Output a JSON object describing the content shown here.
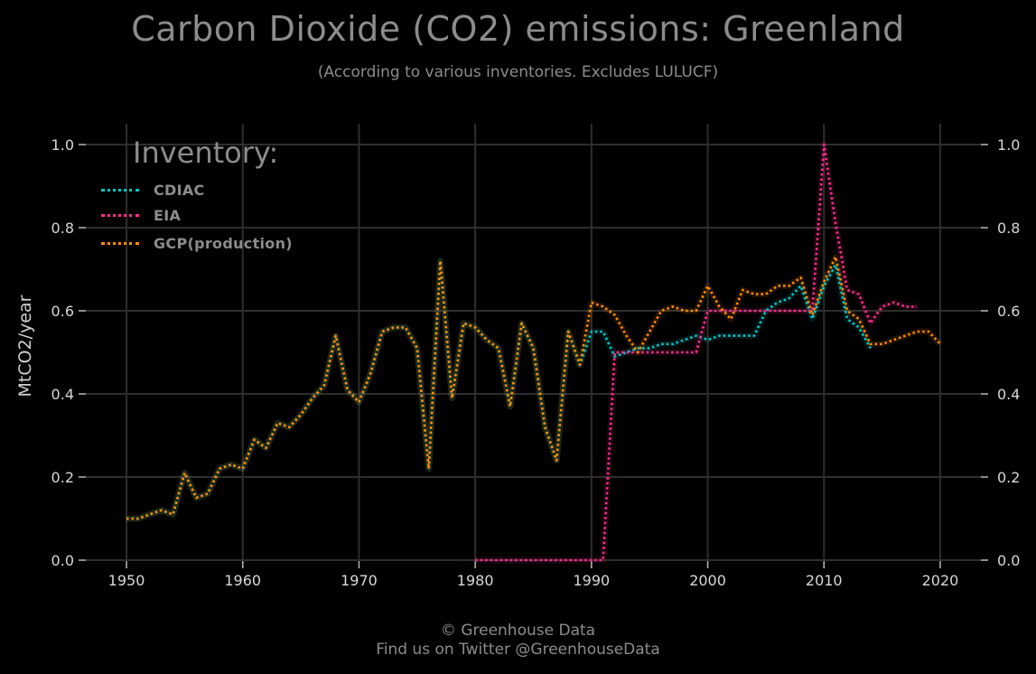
{
  "header": {
    "title": "Carbon Dioxide (CO2) emissions: Greenland",
    "subtitle": "(According to various inventories. Excludes LULUCF)"
  },
  "legend": {
    "title": "Inventory:",
    "items": [
      "CDIAC",
      "EIA",
      "GCP(production)"
    ]
  },
  "footer": {
    "line1": "© Greenhouse Data",
    "line2": "Find us on Twitter @GreenhouseData"
  },
  "colors": {
    "background": "#000000",
    "grid": "#2e2e2e",
    "cdiac": "#00c8c8",
    "eia": "#ff2d8c",
    "gcp": "#ff8c00"
  },
  "chart_data": {
    "type": "line",
    "ylabel": "MtCO2/year",
    "xlim": [
      1946.5,
      2023.5
    ],
    "ylim": [
      0,
      1.0
    ],
    "xticks": [
      1950,
      1960,
      1970,
      1980,
      1990,
      2000,
      2010,
      2020
    ],
    "yticks": [
      0.0,
      0.2,
      0.4,
      0.6,
      0.8,
      1.0
    ],
    "ytick_labels": [
      "0.0",
      "0.2",
      "0.4",
      "0.6",
      "0.8",
      "1.0"
    ],
    "grid": true,
    "legend_position": "top-left",
    "series": [
      {
        "name": "CDIAC",
        "color": "#00c8c8",
        "x": [
          1950,
          1951,
          1952,
          1953,
          1954,
          1955,
          1956,
          1957,
          1958,
          1959,
          1960,
          1961,
          1962,
          1963,
          1964,
          1965,
          1966,
          1967,
          1968,
          1969,
          1970,
          1971,
          1972,
          1973,
          1974,
          1975,
          1976,
          1977,
          1978,
          1979,
          1980,
          1981,
          1982,
          1983,
          1984,
          1985,
          1986,
          1987,
          1988,
          1989,
          1990,
          1991,
          1992,
          1993,
          1994,
          1995,
          1996,
          1997,
          1998,
          1999,
          2000,
          2001,
          2002,
          2003,
          2004,
          2005,
          2006,
          2007,
          2008,
          2009,
          2010,
          2011,
          2012,
          2013,
          2014
        ],
        "y": [
          0.1,
          0.1,
          0.11,
          0.12,
          0.11,
          0.21,
          0.15,
          0.16,
          0.22,
          0.23,
          0.22,
          0.29,
          0.27,
          0.33,
          0.32,
          0.35,
          0.39,
          0.42,
          0.54,
          0.41,
          0.38,
          0.45,
          0.55,
          0.56,
          0.56,
          0.51,
          0.22,
          0.72,
          0.39,
          0.57,
          0.56,
          0.53,
          0.51,
          0.37,
          0.57,
          0.51,
          0.32,
          0.24,
          0.55,
          0.47,
          0.55,
          0.55,
          0.49,
          0.5,
          0.51,
          0.51,
          0.52,
          0.52,
          0.53,
          0.54,
          0.53,
          0.54,
          0.54,
          0.54,
          0.54,
          0.6,
          0.62,
          0.63,
          0.66,
          0.58,
          0.66,
          0.71,
          0.58,
          0.56,
          0.51
        ]
      },
      {
        "name": "EIA",
        "color": "#ff2d8c",
        "x": [
          1980,
          1981,
          1982,
          1983,
          1984,
          1985,
          1986,
          1987,
          1988,
          1989,
          1990,
          1991,
          1992,
          1993,
          1994,
          1995,
          1996,
          1997,
          1998,
          1999,
          2000,
          2001,
          2002,
          2003,
          2004,
          2005,
          2006,
          2007,
          2008,
          2009,
          2010,
          2011,
          2012,
          2013,
          2014,
          2015,
          2016,
          2017,
          2018
        ],
        "y": [
          0.0,
          0.0,
          0.0,
          0.0,
          0.0,
          0.0,
          0.0,
          0.0,
          0.0,
          0.0,
          0.0,
          0.0,
          0.5,
          0.5,
          0.5,
          0.5,
          0.5,
          0.5,
          0.5,
          0.5,
          0.6,
          0.6,
          0.6,
          0.6,
          0.6,
          0.6,
          0.6,
          0.6,
          0.6,
          0.6,
          1.0,
          0.81,
          0.65,
          0.64,
          0.57,
          0.61,
          0.62,
          0.61,
          0.61
        ]
      },
      {
        "name": "GCP(production)",
        "color": "#ff8c00",
        "x": [
          1950,
          1951,
          1952,
          1953,
          1954,
          1955,
          1956,
          1957,
          1958,
          1959,
          1960,
          1961,
          1962,
          1963,
          1964,
          1965,
          1966,
          1967,
          1968,
          1969,
          1970,
          1971,
          1972,
          1973,
          1974,
          1975,
          1976,
          1977,
          1978,
          1979,
          1980,
          1981,
          1982,
          1983,
          1984,
          1985,
          1986,
          1987,
          1988,
          1989,
          1990,
          1991,
          1992,
          1993,
          1994,
          1995,
          1996,
          1997,
          1998,
          1999,
          2000,
          2001,
          2002,
          2003,
          2004,
          2005,
          2006,
          2007,
          2008,
          2009,
          2010,
          2011,
          2012,
          2013,
          2014,
          2015,
          2016,
          2017,
          2018,
          2019,
          2020
        ],
        "y": [
          0.1,
          0.1,
          0.11,
          0.12,
          0.11,
          0.21,
          0.15,
          0.16,
          0.22,
          0.23,
          0.22,
          0.29,
          0.27,
          0.33,
          0.32,
          0.35,
          0.39,
          0.42,
          0.54,
          0.41,
          0.38,
          0.45,
          0.55,
          0.56,
          0.56,
          0.51,
          0.22,
          0.72,
          0.39,
          0.57,
          0.56,
          0.53,
          0.51,
          0.37,
          0.57,
          0.51,
          0.32,
          0.24,
          0.55,
          0.47,
          0.62,
          0.61,
          0.59,
          0.54,
          0.5,
          0.55,
          0.6,
          0.61,
          0.6,
          0.6,
          0.66,
          0.61,
          0.58,
          0.65,
          0.64,
          0.64,
          0.66,
          0.66,
          0.68,
          0.59,
          0.67,
          0.73,
          0.6,
          0.58,
          0.52,
          0.52,
          0.53,
          0.54,
          0.55,
          0.55,
          0.52
        ]
      }
    ]
  }
}
